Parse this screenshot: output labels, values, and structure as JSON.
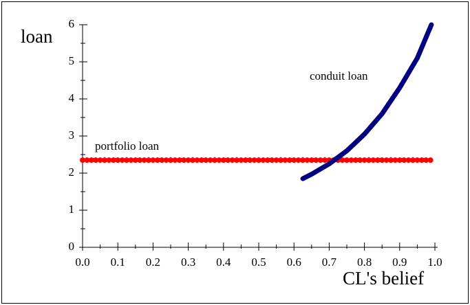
{
  "chart_data": {
    "type": "line",
    "xlabel": "CL's belief",
    "ylabel": "loan",
    "xlim": [
      0,
      1
    ],
    "ylim": [
      0,
      6
    ],
    "xticks": [
      {
        "value": 0,
        "label": "0.0"
      },
      0.1,
      0.2,
      0.3,
      0.4,
      0.5,
      0.6,
      0.7,
      0.8,
      0.9,
      {
        "value": 1,
        "label": "1.0"
      }
    ],
    "yticks": [
      0,
      1,
      2,
      3,
      4,
      5,
      6
    ],
    "series": [
      {
        "name": "portfolio loan",
        "color": "#ff0000",
        "x": [
          0,
          1
        ],
        "values": [
          2.35,
          2.35
        ]
      },
      {
        "name": "conduit loan",
        "color": "#000080",
        "x": [
          0.625,
          0.65,
          0.7,
          0.75,
          0.8,
          0.85,
          0.9,
          0.95,
          0.99
        ],
        "values": [
          1.85,
          1.97,
          2.25,
          2.6,
          3.05,
          3.6,
          4.3,
          5.1,
          6.0
        ]
      }
    ]
  }
}
